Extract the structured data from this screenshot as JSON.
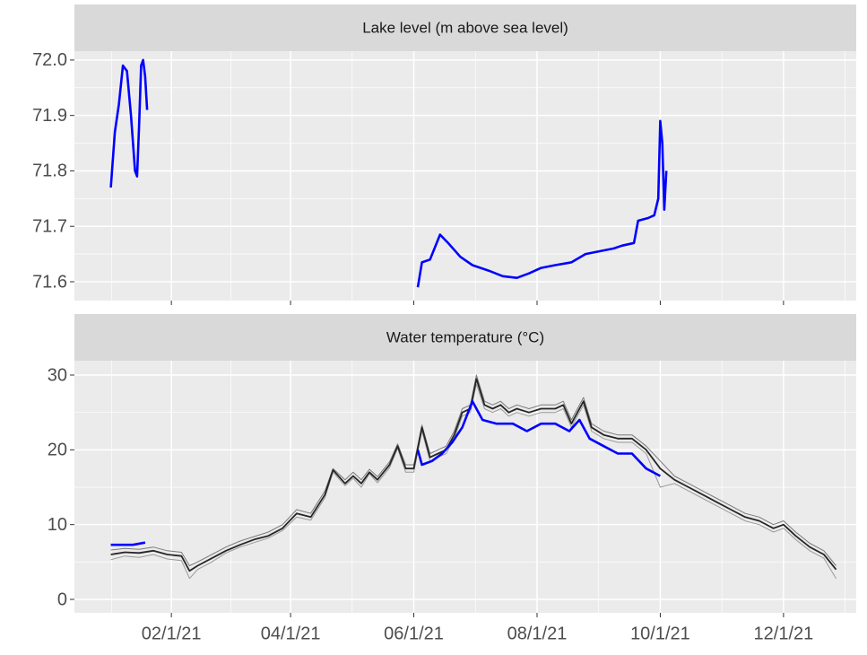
{
  "chart_data": [
    {
      "type": "line",
      "title": "Lake level (m above sea level)",
      "ylim": [
        71.566,
        72.016
      ],
      "yticks": [
        {
          "value": 72,
          "label": "72.0"
        },
        71.9,
        71.8,
        71.7,
        71.6
      ],
      "grid": true,
      "series": [
        {
          "color": "#0000ff",
          "x": [
            "2021-01-02",
            "2021-01-04",
            "2021-01-06",
            "2021-01-08",
            "2021-01-10",
            "2021-01-12",
            "2021-01-14",
            "2021-01-15",
            "2021-01-16",
            "2021-01-17",
            "2021-01-18",
            "2021-01-19",
            "2021-01-20",
            "2021-03-15",
            "2021-06-03",
            "2021-06-05",
            "2021-06-09",
            "2021-06-14",
            "2021-06-18",
            "2021-06-24",
            "2021-06-30",
            "2021-07-08",
            "2021-07-15",
            "2021-07-22",
            "2021-07-28",
            "2021-08-03",
            "2021-08-10",
            "2021-08-18",
            "2021-08-25",
            "2021-09-01",
            "2021-09-08",
            "2021-09-12",
            "2021-09-18",
            "2021-09-20",
            "2021-09-25",
            "2021-09-28",
            "2021-09-30",
            "2021-10-01",
            "2021-10-02",
            "2021-10-03",
            "2021-10-04"
          ],
          "values": [
            71.77,
            71.87,
            71.92,
            71.99,
            71.98,
            71.9,
            71.8,
            71.79,
            71.88,
            71.99,
            72.0,
            71.97,
            71.91,
            null,
            71.59,
            71.635,
            71.64,
            71.685,
            71.67,
            71.645,
            71.63,
            71.62,
            71.61,
            71.607,
            71.615,
            71.625,
            71.63,
            71.635,
            71.65,
            71.655,
            71.66,
            71.665,
            71.67,
            71.71,
            71.715,
            71.72,
            71.75,
            71.89,
            71.85,
            71.73,
            71.8
          ]
        }
      ]
    },
    {
      "type": "line",
      "title": "Water temperature (°C)",
      "xlim": [
        "2020-12-15",
        "2022-01-06"
      ],
      "xticks": [
        {
          "value": "2021-02-01",
          "label": "02/1/21"
        },
        {
          "value": "2021-04-01",
          "label": "04/1/21"
        },
        {
          "value": "2021-06-01",
          "label": "06/1/21"
        },
        {
          "value": "2021-08-01",
          "label": "08/1/21"
        },
        {
          "value": "2021-10-01",
          "label": "10/1/21"
        },
        {
          "value": "2021-12-01",
          "label": "12/1/21"
        }
      ],
      "ylim": [
        -1.8,
        31.92
      ],
      "yticks": [
        0,
        10,
        20,
        30
      ],
      "grid": true,
      "series": [
        {
          "color": "#9a9a9a",
          "x": [
            "2021-01-02",
            "2021-01-09",
            "2021-01-16",
            "2021-01-23",
            "2021-01-30",
            "2021-02-06",
            "2021-02-10",
            "2021-02-14",
            "2021-02-21",
            "2021-02-28",
            "2021-03-07",
            "2021-03-14",
            "2021-03-21",
            "2021-03-28",
            "2021-04-04",
            "2021-04-11",
            "2021-04-18",
            "2021-04-22",
            "2021-04-28",
            "2021-05-02",
            "2021-05-06",
            "2021-05-10",
            "2021-05-14",
            "2021-05-20",
            "2021-05-24",
            "2021-05-28",
            "2021-06-01",
            "2021-06-05",
            "2021-06-09",
            "2021-06-13",
            "2021-06-17",
            "2021-06-21",
            "2021-06-25",
            "2021-06-29",
            "2021-07-02",
            "2021-07-06",
            "2021-07-10",
            "2021-07-14",
            "2021-07-18",
            "2021-07-22",
            "2021-07-28",
            "2021-08-03",
            "2021-08-10",
            "2021-08-14",
            "2021-08-18",
            "2021-08-24",
            "2021-08-28",
            "2021-09-03",
            "2021-09-10",
            "2021-09-17",
            "2021-09-24",
            "2021-10-01",
            "2021-10-08",
            "2021-10-15",
            "2021-10-22",
            "2021-10-29",
            "2021-11-05",
            "2021-11-12",
            "2021-11-19",
            "2021-11-26",
            "2021-12-01",
            "2021-12-07",
            "2021-12-14",
            "2021-12-21",
            "2021-12-27"
          ],
          "values": [
            5.3,
            5.8,
            5.6,
            6.0,
            5.4,
            5.2,
            2.8,
            4.0,
            5.0,
            6.2,
            7.0,
            7.6,
            8.2,
            9.2,
            11.0,
            10.6,
            13.6,
            17.0,
            15.2,
            16.2,
            15.0,
            16.8,
            15.6,
            17.6,
            20.2,
            17.0,
            17.0,
            22.5,
            18.5,
            19.0,
            19.5,
            21.5,
            24.5,
            25.0,
            28.8,
            25.5,
            25.0,
            25.5,
            24.5,
            25.0,
            24.5,
            25.0,
            25.0,
            25.5,
            23.0,
            26.0,
            22.5,
            21.5,
            21.0,
            21.0,
            19.5,
            15.0,
            15.5,
            14.5,
            13.5,
            12.5,
            11.5,
            10.5,
            10.0,
            9.0,
            9.5,
            8.0,
            6.5,
            5.5,
            2.8
          ]
        },
        {
          "color": "#7a7a7a",
          "x": [
            "2021-01-02",
            "2021-01-09",
            "2021-01-16",
            "2021-01-23",
            "2021-01-30",
            "2021-02-06",
            "2021-02-10",
            "2021-02-14",
            "2021-02-21",
            "2021-02-28",
            "2021-03-07",
            "2021-03-14",
            "2021-03-21",
            "2021-03-28",
            "2021-04-04",
            "2021-04-11",
            "2021-04-18",
            "2021-04-22",
            "2021-04-28",
            "2021-05-02",
            "2021-05-06",
            "2021-05-10",
            "2021-05-14",
            "2021-05-20",
            "2021-05-24",
            "2021-05-28",
            "2021-06-01",
            "2021-06-05",
            "2021-06-09",
            "2021-06-13",
            "2021-06-17",
            "2021-06-21",
            "2021-06-25",
            "2021-06-29",
            "2021-07-02",
            "2021-07-06",
            "2021-07-10",
            "2021-07-14",
            "2021-07-18",
            "2021-07-22",
            "2021-07-28",
            "2021-08-03",
            "2021-08-10",
            "2021-08-14",
            "2021-08-18",
            "2021-08-24",
            "2021-08-28",
            "2021-09-03",
            "2021-09-10",
            "2021-09-17",
            "2021-09-24",
            "2021-10-01",
            "2021-10-08",
            "2021-10-15",
            "2021-10-22",
            "2021-10-29",
            "2021-11-05",
            "2021-11-12",
            "2021-11-19",
            "2021-11-26",
            "2021-12-01",
            "2021-12-07",
            "2021-12-14",
            "2021-12-21",
            "2021-12-27"
          ],
          "values": [
            6.6,
            6.8,
            6.7,
            7.0,
            6.5,
            6.3,
            4.5,
            5.0,
            6.0,
            7.0,
            7.8,
            8.4,
            9.0,
            10.0,
            12.0,
            11.5,
            14.5,
            17.5,
            16.0,
            17.0,
            16.0,
            17.4,
            16.4,
            18.4,
            20.8,
            18.0,
            18.0,
            23.3,
            19.5,
            20.0,
            20.5,
            22.5,
            25.5,
            26.0,
            30.0,
            26.5,
            26.0,
            26.5,
            25.5,
            26.0,
            25.5,
            26.0,
            26.0,
            26.5,
            24.0,
            27.0,
            23.5,
            22.5,
            22.0,
            22.0,
            20.5,
            18.5,
            16.5,
            15.5,
            14.5,
            13.5,
            12.5,
            11.5,
            11.0,
            10.0,
            10.5,
            9.0,
            7.5,
            6.5,
            4.5
          ]
        },
        {
          "color": "#262626",
          "x": [
            "2021-01-02",
            "2021-01-09",
            "2021-01-16",
            "2021-01-23",
            "2021-01-30",
            "2021-02-06",
            "2021-02-10",
            "2021-02-14",
            "2021-02-21",
            "2021-02-28",
            "2021-03-07",
            "2021-03-14",
            "2021-03-21",
            "2021-03-28",
            "2021-04-04",
            "2021-04-11",
            "2021-04-18",
            "2021-04-22",
            "2021-04-28",
            "2021-05-02",
            "2021-05-06",
            "2021-05-10",
            "2021-05-14",
            "2021-05-20",
            "2021-05-24",
            "2021-05-28",
            "2021-06-01",
            "2021-06-05",
            "2021-06-09",
            "2021-06-13",
            "2021-06-17",
            "2021-06-21",
            "2021-06-25",
            "2021-06-29",
            "2021-07-02",
            "2021-07-06",
            "2021-07-10",
            "2021-07-14",
            "2021-07-18",
            "2021-07-22",
            "2021-07-28",
            "2021-08-03",
            "2021-08-10",
            "2021-08-14",
            "2021-08-18",
            "2021-08-24",
            "2021-08-28",
            "2021-09-03",
            "2021-09-10",
            "2021-09-17",
            "2021-09-24",
            "2021-10-01",
            "2021-10-08",
            "2021-10-15",
            "2021-10-22",
            "2021-10-29",
            "2021-11-05",
            "2021-11-12",
            "2021-11-19",
            "2021-11-26",
            "2021-12-01",
            "2021-12-07",
            "2021-12-14",
            "2021-12-21",
            "2021-12-27"
          ],
          "values": [
            6.0,
            6.3,
            6.2,
            6.5,
            6.0,
            5.8,
            3.8,
            4.5,
            5.5,
            6.5,
            7.3,
            8.0,
            8.5,
            9.5,
            11.5,
            11.0,
            14.0,
            17.3,
            15.5,
            16.5,
            15.5,
            17.0,
            16.0,
            18.0,
            20.5,
            17.5,
            17.5,
            23.0,
            19.0,
            19.5,
            20.0,
            22.0,
            25.0,
            25.5,
            29.5,
            26.0,
            25.5,
            26.0,
            25.0,
            25.5,
            25.0,
            25.5,
            25.5,
            26.0,
            23.5,
            26.5,
            23.0,
            22.0,
            21.5,
            21.5,
            20.0,
            17.5,
            16.0,
            15.0,
            14.0,
            13.0,
            12.0,
            11.0,
            10.5,
            9.5,
            10.0,
            8.5,
            7.0,
            6.0,
            4.0
          ]
        },
        {
          "color": "#0000ff",
          "x": [
            "2021-01-02",
            "2021-01-08",
            "2021-01-13",
            "2021-01-19",
            "2021-03-01",
            "2021-06-03",
            "2021-06-05",
            "2021-06-10",
            "2021-06-15",
            "2021-06-20",
            "2021-06-25",
            "2021-06-30",
            "2021-07-05",
            "2021-07-12",
            "2021-07-20",
            "2021-07-27",
            "2021-08-03",
            "2021-08-10",
            "2021-08-17",
            "2021-08-22",
            "2021-08-27",
            "2021-09-03",
            "2021-09-10",
            "2021-09-17",
            "2021-09-24",
            "2021-10-01"
          ],
          "values": [
            7.3,
            7.3,
            7.3,
            7.6,
            null,
            20.0,
            18.0,
            18.5,
            19.5,
            21.0,
            23.0,
            26.5,
            24.0,
            23.5,
            23.5,
            22.5,
            23.5,
            23.5,
            22.5,
            24.0,
            21.5,
            20.5,
            19.5,
            19.5,
            17.5,
            16.5
          ]
        }
      ]
    }
  ]
}
